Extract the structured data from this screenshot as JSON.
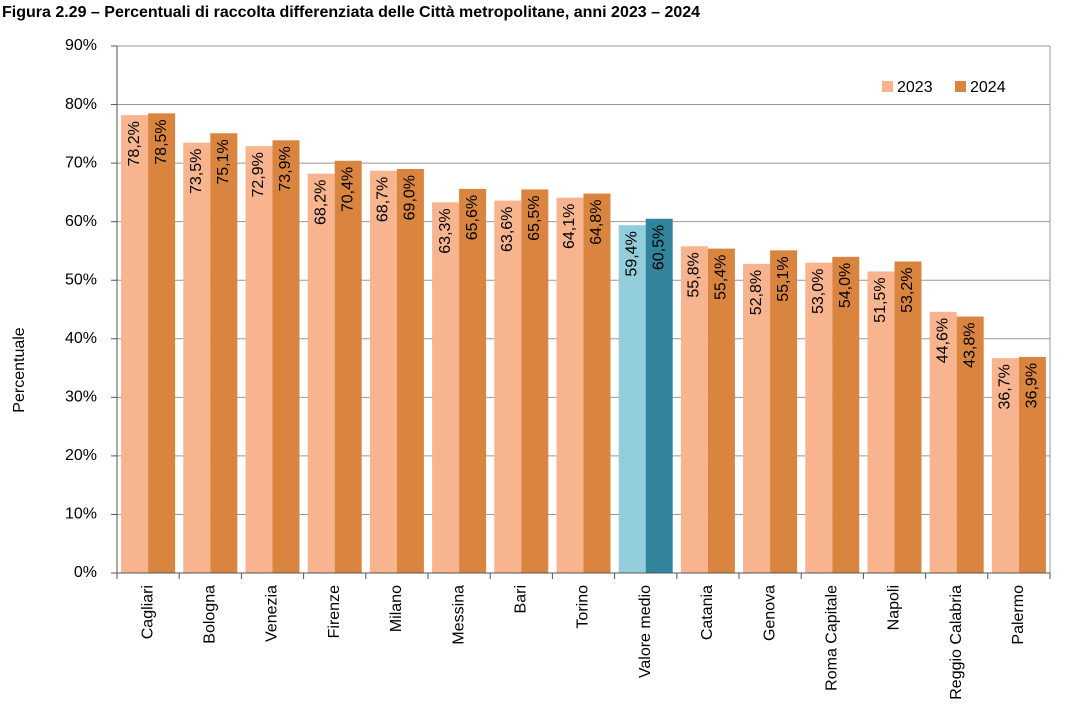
{
  "chart_data": {
    "type": "bar",
    "title": "Figura 2.29 – Percentuali di raccolta differenziata delle Città metropolitane, anni 2023 – 2024",
    "y_label": "Percentuale",
    "categories": [
      "Cagliari",
      "Bologna",
      "Venezia",
      "Firenze",
      "Milano",
      "Messina",
      "Bari",
      "Torino",
      "Valore medio",
      "Catania",
      "Genova",
      "Roma Capitale",
      "Napoli",
      "Reggio Calabria",
      "Palermo"
    ],
    "series": [
      {
        "name": "2023",
        "color": "#f7b48e",
        "colors": [
          "#f7b48e",
          "#f7b48e",
          "#f7b48e",
          "#f7b48e",
          "#f7b48e",
          "#f7b48e",
          "#f7b48e",
          "#f7b48e",
          "#92cddc",
          "#f7b48e",
          "#f7b48e",
          "#f7b48e",
          "#f7b48e",
          "#f7b48e",
          "#f7b48e"
        ],
        "values": [
          78.2,
          73.5,
          72.9,
          68.2,
          68.7,
          63.3,
          63.6,
          64.1,
          59.4,
          55.8,
          52.8,
          53.0,
          51.5,
          44.6,
          36.7
        ],
        "value_labels": [
          "78,2%",
          "73,5%",
          "72,9%",
          "68,2%",
          "68,7%",
          "63,3%",
          "63,6%",
          "64,1%",
          "59,4%",
          "55,8%",
          "52,8%",
          "53,0%",
          "51,5%",
          "44,6%",
          "36,7%"
        ]
      },
      {
        "name": "2024",
        "color": "#d98540",
        "colors": [
          "#d98540",
          "#d98540",
          "#d98540",
          "#d98540",
          "#d98540",
          "#d98540",
          "#d98540",
          "#d98540",
          "#31849b",
          "#d98540",
          "#d98540",
          "#d98540",
          "#d98540",
          "#d98540",
          "#d98540"
        ],
        "values": [
          78.5,
          75.1,
          73.9,
          70.4,
          69.0,
          65.6,
          65.5,
          64.8,
          60.5,
          55.4,
          55.1,
          54.0,
          53.2,
          43.8,
          36.9
        ],
        "value_labels": [
          "78,5%",
          "75,1%",
          "73,9%",
          "70,4%",
          "69,0%",
          "65,6%",
          "65,5%",
          "64,8%",
          "60,5%",
          "55,4%",
          "55,1%",
          "54,0%",
          "53,2%",
          "43,8%",
          "36,9%"
        ]
      }
    ],
    "ylim": [
      0,
      90
    ],
    "yticks": [
      {
        "value": 0,
        "label": "0%"
      },
      {
        "value": 10,
        "label": "10%"
      },
      {
        "value": 20,
        "label": "20%"
      },
      {
        "value": 30,
        "label": "30%"
      },
      {
        "value": 40,
        "label": "40%"
      },
      {
        "value": 50,
        "label": "50%"
      },
      {
        "value": 60,
        "label": "60%"
      },
      {
        "value": 70,
        "label": "70%"
      },
      {
        "value": 80,
        "label": "80%"
      },
      {
        "value": 90,
        "label": "90%"
      }
    ],
    "grid": true,
    "legend": "top-right"
  }
}
